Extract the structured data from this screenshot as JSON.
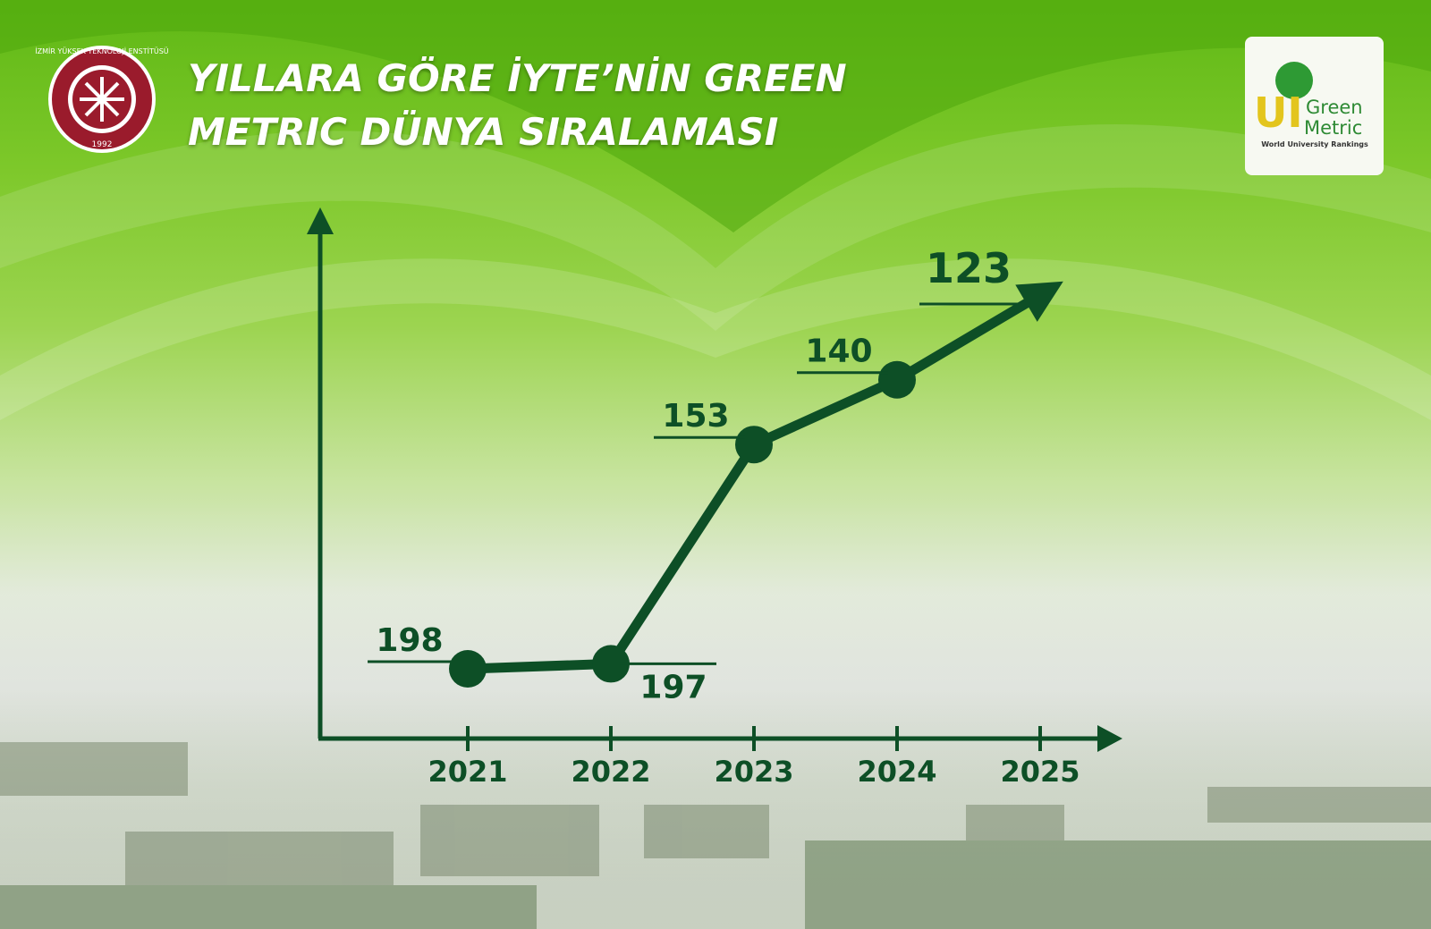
{
  "chart_data": {
    "type": "line",
    "title": "YILLARA GÖRE İYTE’NİN GREEN METRIC DÜNYA SIRALAMASI",
    "categories": [
      "2021",
      "2022",
      "2023",
      "2024",
      "2025"
    ],
    "values": [
      198,
      197,
      153,
      140,
      123
    ],
    "color": "#0d4f26",
    "y_inverted": true
  },
  "logos": {
    "left": {
      "name": "İZMİR YÜKSEK TEKNOLOJİ ENSTİTÜSÜ",
      "year": "1992"
    },
    "right": {
      "mark": "UI",
      "name_1": "Green",
      "name_2": "Metric",
      "tagline": "World University Rankings"
    }
  }
}
